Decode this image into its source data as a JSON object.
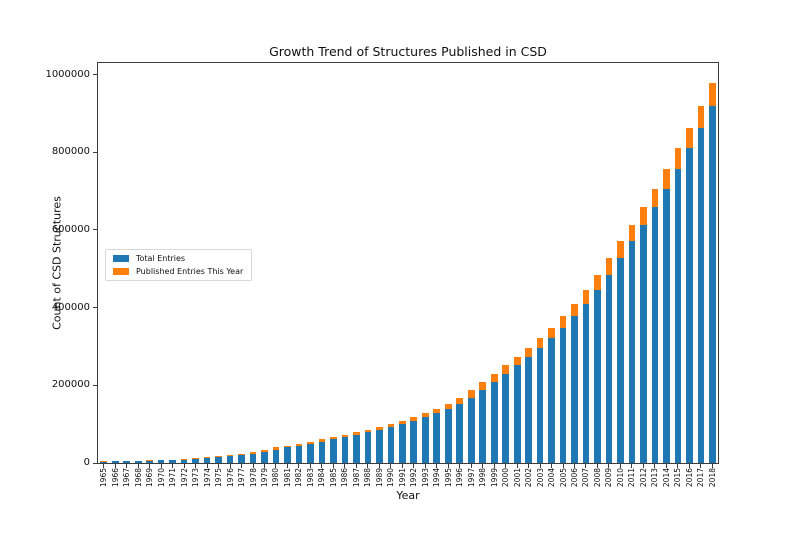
{
  "chart_data": {
    "type": "bar",
    "stacked": true,
    "title": "Growth Trend of Structures Published in CSD",
    "xlabel": "Year",
    "ylabel": "Count of CSD Structures",
    "ylim": [
      0,
      1030000
    ],
    "yticks": [
      0,
      200000,
      400000,
      600000,
      800000,
      1000000
    ],
    "grid": false,
    "legend_position": "center-left inside plot",
    "categories": [
      "1965",
      "1966",
      "1967",
      "1968",
      "1969",
      "1970",
      "1971",
      "1972",
      "1973",
      "1974",
      "1975",
      "1976",
      "1977",
      "1978",
      "1979",
      "1980",
      "1981",
      "1982",
      "1983",
      "1984",
      "1985",
      "1986",
      "1987",
      "1988",
      "1989",
      "1990",
      "1991",
      "1992",
      "1993",
      "1994",
      "1995",
      "1996",
      "1997",
      "1998",
      "1999",
      "2000",
      "2001",
      "2002",
      "2003",
      "2004",
      "2005",
      "2006",
      "2007",
      "2008",
      "2009",
      "2010",
      "2011",
      "2012",
      "2013",
      "2014",
      "2015",
      "2016",
      "2017",
      "2018"
    ],
    "series": [
      {
        "name": "Total Entries",
        "color": "#1f77b4",
        "values": [
          3500,
          4000,
          4600,
          5250,
          6000,
          6900,
          7900,
          9000,
          10300,
          12200,
          14500,
          17200,
          20400,
          24200,
          28700,
          34000,
          40300,
          44700,
          49500,
          54800,
          60800,
          67400,
          72900,
          78900,
          85400,
          92400,
          100000,
          108600,
          117900,
          128000,
          139000,
          151000,
          168100,
          187200,
          208500,
          228900,
          251300,
          272600,
          295800,
          320900,
          348100,
          377700,
          410500,
          446100,
          484800,
          526900,
          572500,
          613900,
          658400,
          706100,
          757200,
          812000,
          863800,
          918900
        ]
      },
      {
        "name": "Published Entries This Year",
        "color": "#ff7f0e",
        "values": [
          500,
          600,
          650,
          750,
          900,
          1000,
          1100,
          1300,
          1900,
          2300,
          2700,
          3200,
          3800,
          4500,
          5300,
          6300,
          4400,
          4800,
          5300,
          6000,
          6600,
          5500,
          6000,
          6500,
          7000,
          7600,
          8600,
          9300,
          10100,
          11000,
          12000,
          17100,
          19100,
          21300,
          20400,
          22400,
          21300,
          23200,
          25100,
          27200,
          29600,
          32800,
          35600,
          38700,
          42100,
          45600,
          41400,
          44500,
          47700,
          51100,
          54800,
          51800,
          55100,
          58800
        ]
      }
    ]
  }
}
